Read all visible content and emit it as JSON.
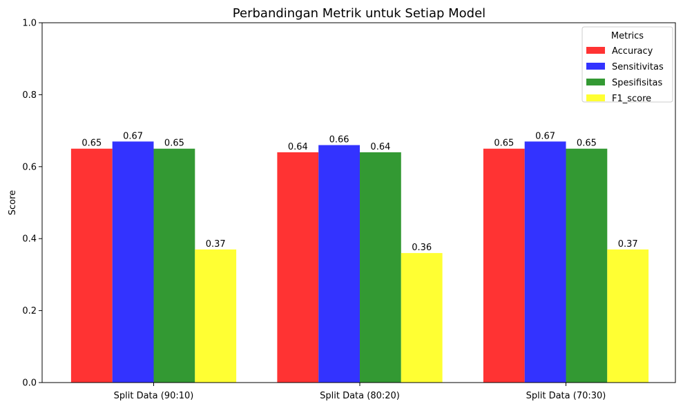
{
  "chart_data": {
    "type": "bar",
    "title": "Perbandingan Metrik untuk Setiap Model",
    "xlabel": "",
    "ylabel": "Score",
    "ylim": [
      0,
      1
    ],
    "yticks": [
      0.0,
      0.2,
      0.4,
      0.6,
      0.8,
      1.0
    ],
    "ytick_labels": [
      "0.0",
      "0.2",
      "0.4",
      "0.6",
      "0.8",
      "1.0"
    ],
    "grid": false,
    "legend": {
      "title": "Metrics",
      "placement": "top-right"
    },
    "categories": [
      "Split Data (90:10)",
      "Split Data (80:20)",
      "Split Data (70:30)"
    ],
    "series": [
      {
        "name": "Accuracy",
        "color": "#ff3333",
        "values": [
          0.65,
          0.64,
          0.65
        ],
        "labels": [
          "0.65",
          "0.64",
          "0.65"
        ]
      },
      {
        "name": "Sensitivitas",
        "color": "#3333ff",
        "values": [
          0.67,
          0.66,
          0.67
        ],
        "labels": [
          "0.67",
          "0.66",
          "0.67"
        ]
      },
      {
        "name": "Spesifisitas",
        "color": "#339933",
        "values": [
          0.65,
          0.64,
          0.65
        ],
        "labels": [
          "0.65",
          "0.64",
          "0.65"
        ]
      },
      {
        "name": "F1_score",
        "color": "#ffff33",
        "values": [
          0.37,
          0.36,
          0.37
        ],
        "labels": [
          "0.37",
          "0.36",
          "0.37"
        ]
      }
    ]
  }
}
